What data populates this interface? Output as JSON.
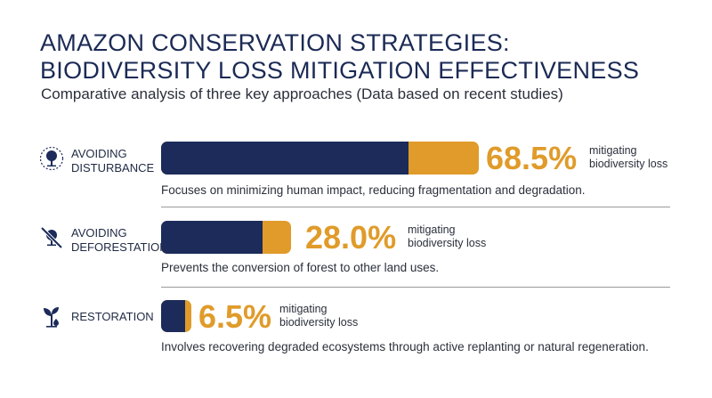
{
  "title_line1": "AMAZON CONSERVATION STRATEGIES:",
  "title_line2": "BIODIVERSITY LOSS MITIGATION EFFECTIVENESS",
  "subtitle": "Comparative analysis of three key approaches (Data based on recent studies)",
  "colors": {
    "navy": "#1c2b5a",
    "orange": "#e09b2a"
  },
  "chart_data": {
    "type": "bar",
    "categories": [
      "AVOIDING DISTURBANCE",
      "AVOIDING DEFORESTATION",
      "RESTORATION"
    ],
    "values": [
      68.5,
      28.0,
      6.5
    ],
    "unit": "%",
    "value_labels": [
      "68.5%",
      "28.0%",
      "6.5%"
    ],
    "value_note_line1": "mitigating",
    "value_note_line2": "biodiversity loss",
    "descriptions": [
      "Focuses on minimizing human impact, reducing fragmentation and degradation.",
      "Prevents the conversion of forest to other land uses.",
      "Involves recovering degraded ecosystems through active replanting or natural regeneration."
    ],
    "icons": [
      "tree-icon",
      "no-tree-icon",
      "sprout-icon"
    ]
  },
  "rows": [
    {
      "label_line1": "AVOIDING",
      "label_line2": "DISTURBANCE"
    },
    {
      "label_line1": "AVOIDING",
      "label_line2": "DEFORESTATION"
    },
    {
      "label_line1": "RESTORATION",
      "label_line2": ""
    }
  ]
}
